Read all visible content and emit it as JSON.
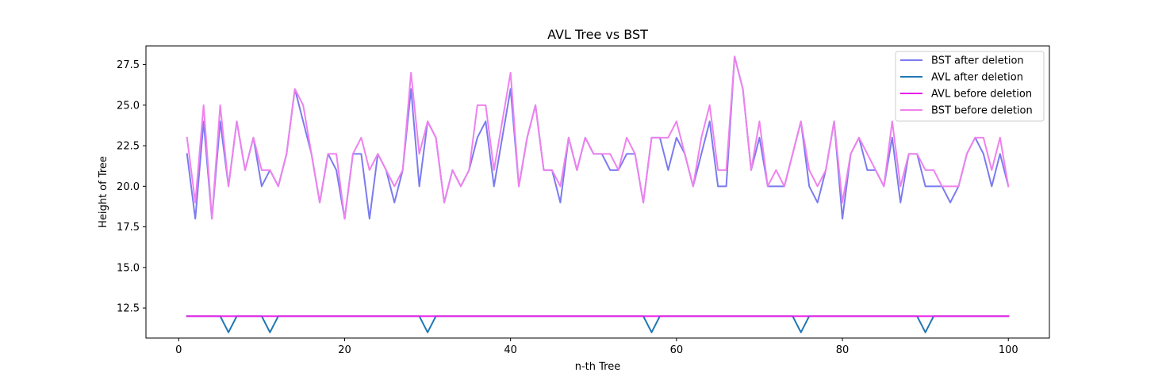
{
  "chart_data": {
    "type": "line",
    "title": "AVL Tree vs BST",
    "xlabel": "n-th Tree",
    "ylabel": "Height of Tree",
    "xlim": [
      -3.95,
      104.95
    ],
    "ylim": [
      10.65,
      28.65
    ],
    "xticks": [
      0,
      20,
      40,
      60,
      80,
      100
    ],
    "xtick_labels": [
      "0",
      "20",
      "40",
      "60",
      "80",
      "100"
    ],
    "yticks": [
      12.5,
      15.0,
      17.5,
      20.0,
      22.5,
      25.0,
      27.5
    ],
    "ytick_labels": [
      "12.5",
      "15.0",
      "17.5",
      "20.0",
      "22.5",
      "25.0",
      "27.5"
    ],
    "grid": false,
    "legend_position": "top-right",
    "series": [
      {
        "name": "BST after deletion",
        "color": "#7b7bf0",
        "x": [
          1,
          2,
          3,
          4,
          5,
          6,
          7,
          8,
          9,
          10,
          11,
          12,
          13,
          14,
          15,
          16,
          17,
          18,
          19,
          20,
          21,
          22,
          23,
          24,
          25,
          26,
          27,
          28,
          29,
          30,
          31,
          32,
          33,
          34,
          35,
          36,
          37,
          38,
          39,
          40,
          41,
          42,
          43,
          44,
          45,
          46,
          47,
          48,
          49,
          50,
          51,
          52,
          53,
          54,
          55,
          56,
          57,
          58,
          59,
          60,
          61,
          62,
          63,
          64,
          65,
          66,
          67,
          68,
          69,
          70,
          71,
          72,
          73,
          74,
          75,
          76,
          77,
          78,
          79,
          80,
          81,
          82,
          83,
          84,
          85,
          86,
          87,
          88,
          89,
          90,
          91,
          92,
          93,
          94,
          95,
          96,
          97,
          98,
          99,
          100
        ],
        "y": [
          22,
          18,
          24,
          18,
          24,
          20,
          24,
          21,
          23,
          20,
          21,
          20,
          22,
          26,
          24,
          22,
          19,
          22,
          21,
          18,
          22,
          22,
          18,
          22,
          21,
          19,
          21,
          26,
          20,
          24,
          23,
          19,
          21,
          20,
          21,
          23,
          24,
          20,
          23,
          26,
          20,
          23,
          25,
          21,
          21,
          19,
          23,
          21,
          23,
          22,
          22,
          21,
          21,
          22,
          22,
          19,
          23,
          23,
          21,
          23,
          22,
          20,
          22,
          24,
          20,
          20,
          28,
          26,
          21,
          23,
          20,
          20,
          20,
          22,
          24,
          20,
          19,
          21,
          24,
          18,
          22,
          23,
          21,
          21,
          20,
          23,
          19,
          22,
          22,
          20,
          20,
          20,
          19,
          20,
          22,
          23,
          22,
          20,
          22,
          20
        ]
      },
      {
        "name": "AVL after deletion",
        "color": "#1f77b4",
        "x": [
          1,
          2,
          3,
          4,
          5,
          6,
          7,
          8,
          9,
          10,
          11,
          12,
          13,
          14,
          15,
          16,
          17,
          18,
          19,
          20,
          21,
          22,
          23,
          24,
          25,
          26,
          27,
          28,
          29,
          30,
          31,
          32,
          33,
          34,
          35,
          36,
          37,
          38,
          39,
          40,
          41,
          42,
          43,
          44,
          45,
          46,
          47,
          48,
          49,
          50,
          51,
          52,
          53,
          54,
          55,
          56,
          57,
          58,
          59,
          60,
          61,
          62,
          63,
          64,
          65,
          66,
          67,
          68,
          69,
          70,
          71,
          72,
          73,
          74,
          75,
          76,
          77,
          78,
          79,
          80,
          81,
          82,
          83,
          84,
          85,
          86,
          87,
          88,
          89,
          90,
          91,
          92,
          93,
          94,
          95,
          96,
          97,
          98,
          99,
          100
        ],
        "y": [
          12,
          12,
          12,
          12,
          12,
          11,
          12,
          12,
          12,
          12,
          11,
          12,
          12,
          12,
          12,
          12,
          12,
          12,
          12,
          12,
          12,
          12,
          12,
          12,
          12,
          12,
          12,
          12,
          12,
          11,
          12,
          12,
          12,
          12,
          12,
          12,
          12,
          12,
          12,
          12,
          12,
          12,
          12,
          12,
          12,
          12,
          12,
          12,
          12,
          12,
          12,
          12,
          12,
          12,
          12,
          12,
          11,
          12,
          12,
          12,
          12,
          12,
          12,
          12,
          12,
          12,
          12,
          12,
          12,
          12,
          12,
          12,
          12,
          12,
          11,
          12,
          12,
          12,
          12,
          12,
          12,
          12,
          12,
          12,
          12,
          12,
          12,
          12,
          12,
          11,
          12,
          12,
          12,
          12,
          12,
          12,
          12,
          12,
          12,
          12
        ]
      },
      {
        "name": "AVL before deletion",
        "color": "#e81ce8",
        "x": [
          1,
          2,
          3,
          4,
          5,
          6,
          7,
          8,
          9,
          10,
          11,
          12,
          13,
          14,
          15,
          16,
          17,
          18,
          19,
          20,
          21,
          22,
          23,
          24,
          25,
          26,
          27,
          28,
          29,
          30,
          31,
          32,
          33,
          34,
          35,
          36,
          37,
          38,
          39,
          40,
          41,
          42,
          43,
          44,
          45,
          46,
          47,
          48,
          49,
          50,
          51,
          52,
          53,
          54,
          55,
          56,
          57,
          58,
          59,
          60,
          61,
          62,
          63,
          64,
          65,
          66,
          67,
          68,
          69,
          70,
          71,
          72,
          73,
          74,
          75,
          76,
          77,
          78,
          79,
          80,
          81,
          82,
          83,
          84,
          85,
          86,
          87,
          88,
          89,
          90,
          91,
          92,
          93,
          94,
          95,
          96,
          97,
          98,
          99,
          100
        ],
        "y": [
          12,
          12,
          12,
          12,
          12,
          12,
          12,
          12,
          12,
          12,
          12,
          12,
          12,
          12,
          12,
          12,
          12,
          12,
          12,
          12,
          12,
          12,
          12,
          12,
          12,
          12,
          12,
          12,
          12,
          12,
          12,
          12,
          12,
          12,
          12,
          12,
          12,
          12,
          12,
          12,
          12,
          12,
          12,
          12,
          12,
          12,
          12,
          12,
          12,
          12,
          12,
          12,
          12,
          12,
          12,
          12,
          12,
          12,
          12,
          12,
          12,
          12,
          12,
          12,
          12,
          12,
          12,
          12,
          12,
          12,
          12,
          12,
          12,
          12,
          12,
          12,
          12,
          12,
          12,
          12,
          12,
          12,
          12,
          12,
          12,
          12,
          12,
          12,
          12,
          12,
          12,
          12,
          12,
          12,
          12,
          12,
          12,
          12,
          12,
          12
        ]
      },
      {
        "name": "BST before deletion",
        "color": "#ee82ee",
        "x": [
          1,
          2,
          3,
          4,
          5,
          6,
          7,
          8,
          9,
          10,
          11,
          12,
          13,
          14,
          15,
          16,
          17,
          18,
          19,
          20,
          21,
          22,
          23,
          24,
          25,
          26,
          27,
          28,
          29,
          30,
          31,
          32,
          33,
          34,
          35,
          36,
          37,
          38,
          39,
          40,
          41,
          42,
          43,
          44,
          45,
          46,
          47,
          48,
          49,
          50,
          51,
          52,
          53,
          54,
          55,
          56,
          57,
          58,
          59,
          60,
          61,
          62,
          63,
          64,
          65,
          66,
          67,
          68,
          69,
          70,
          71,
          72,
          73,
          74,
          75,
          76,
          77,
          78,
          79,
          80,
          81,
          82,
          83,
          84,
          85,
          86,
          87,
          88,
          89,
          90,
          91,
          92,
          93,
          94,
          95,
          96,
          97,
          98,
          99,
          100
        ],
        "y": [
          23,
          19,
          25,
          18,
          25,
          20,
          24,
          21,
          23,
          21,
          21,
          20,
          22,
          26,
          25,
          22,
          19,
          22,
          22,
          18,
          22,
          23,
          21,
          22,
          21,
          20,
          21,
          27,
          22,
          24,
          23,
          19,
          21,
          20,
          21,
          25,
          25,
          21,
          24,
          27,
          20,
          23,
          25,
          21,
          21,
          20,
          23,
          21,
          23,
          22,
          22,
          22,
          21,
          23,
          22,
          19,
          23,
          23,
          23,
          24,
          22,
          20,
          23,
          25,
          21,
          21,
          28,
          26,
          21,
          24,
          20,
          21,
          20,
          22,
          24,
          21,
          20,
          21,
          24,
          19,
          22,
          23,
          22,
          21,
          20,
          24,
          20,
          22,
          22,
          21,
          21,
          20,
          20,
          20,
          22,
          23,
          23,
          21,
          23,
          20
        ]
      }
    ]
  }
}
